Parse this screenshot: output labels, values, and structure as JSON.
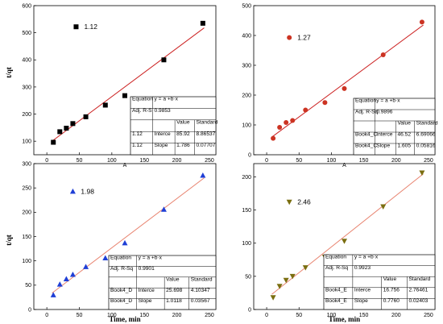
{
  "chart_data": [
    {
      "type": "scatter",
      "xlabel": "A",
      "ylabel": "t/qt",
      "xlim": [
        -20,
        260
      ],
      "ylim": [
        50,
        600
      ],
      "xticks": [
        0,
        50,
        100,
        150,
        200,
        250
      ],
      "yticks": [
        100,
        200,
        300,
        400,
        500,
        600
      ],
      "marker": "square",
      "marker_color": "#000000",
      "line_color": "#cc2222",
      "series": [
        {
          "x": [
            10,
            20,
            30,
            40,
            60,
            90,
            120,
            180,
            240
          ],
          "y": [
            96,
            135,
            148,
            165,
            190,
            233,
            268,
            400,
            535
          ]
        }
      ],
      "fit": {
        "intercept": 85.92,
        "slope": 1.786
      },
      "annotation": {
        "text": "1.12",
        "x": 45,
        "y": 522
      },
      "stats_table": {
        "equation_label": "Equation",
        "equation": "y = a +b·x",
        "r2_label": "Adj. R-S",
        "r2": "0.9853",
        "headers": [
          "Value",
          "Standard"
        ],
        "rows": [
          [
            "1.12",
            "Interce",
            "85.92",
            "8.86537"
          ],
          [
            "1.12",
            "Slope",
            "1.786",
            "0.07707"
          ]
        ]
      }
    },
    {
      "type": "scatter",
      "xlabel": "A",
      "ylabel": "",
      "xlim": [
        -20,
        260
      ],
      "ylim": [
        0,
        500
      ],
      "xticks": [
        0,
        50,
        100,
        150,
        200,
        250
      ],
      "yticks": [
        0,
        100,
        200,
        300,
        400,
        500
      ],
      "marker": "circle",
      "marker_color": "#cc3322",
      "line_color": "#cc2222",
      "series": [
        {
          "x": [
            10,
            20,
            30,
            40,
            60,
            90,
            120,
            180,
            240
          ],
          "y": [
            55,
            92,
            108,
            115,
            150,
            175,
            222,
            335,
            445
          ]
        }
      ],
      "fit": {
        "intercept": 46.52,
        "slope": 1.605
      },
      "annotation": {
        "text": "1.27",
        "x": 35,
        "y": 393
      },
      "stats_table": {
        "equation_label": "Equation",
        "equation": "y = a +b·x",
        "r2_label": "Adj. R-Sq",
        "r2": "0.9896",
        "headers": [
          "Value",
          "Standard"
        ],
        "rows": [
          [
            "Book4_C",
            "Interce",
            "46.52",
            "6.69066"
          ],
          [
            "Book4_C",
            "Slope",
            "1.605",
            "0.05816"
          ]
        ]
      }
    },
    {
      "type": "scatter",
      "xlabel": "Time, min",
      "ylabel": "t/qt",
      "xlim": [
        -20,
        260
      ],
      "ylim": [
        0,
        300
      ],
      "xticks": [
        0,
        50,
        100,
        150,
        200,
        250
      ],
      "yticks": [
        0,
        50,
        100,
        150,
        200,
        250,
        300
      ],
      "marker": "triangle",
      "marker_color": "#1f3fd6",
      "line_color": "#e8836f",
      "series": [
        {
          "x": [
            10,
            20,
            30,
            40,
            60,
            90,
            120,
            180,
            240
          ],
          "y": [
            30,
            52,
            63,
            72,
            88,
            106,
            137,
            206,
            276
          ]
        }
      ],
      "fit": {
        "intercept": 25.698,
        "slope": 1.0118
      },
      "annotation": {
        "text": "1.98",
        "x": 40,
        "y": 243
      },
      "stats_table": {
        "equation_label": "Equation",
        "equation": "y = a +b·x",
        "r2_label": "Adj. R-Sq",
        "r2": "0.9901",
        "headers": [
          "Value",
          "Standard"
        ],
        "rows": [
          [
            "Book4_D",
            "Interce",
            "25.698",
            "4.10347"
          ],
          [
            "Book4_D",
            "Slope",
            "1.0118",
            "0.03567"
          ]
        ]
      }
    },
    {
      "type": "scatter",
      "xlabel": "Time, min",
      "ylabel": "",
      "xlim": [
        -20,
        260
      ],
      "ylim": [
        0,
        220
      ],
      "xticks": [
        0,
        50,
        100,
        150,
        200,
        250
      ],
      "yticks": [
        0,
        50,
        100,
        150,
        200
      ],
      "marker": "triangle-down",
      "marker_color": "#7a6e10",
      "line_color": "#e8836f",
      "series": [
        {
          "x": [
            10,
            20,
            30,
            40,
            60,
            90,
            120,
            180,
            240
          ],
          "y": [
            18,
            35,
            44,
            50,
            63,
            79,
            103,
            155,
            206
          ]
        }
      ],
      "fit": {
        "intercept": 16.756,
        "slope": 0.776
      },
      "annotation": {
        "text": "2.46",
        "x": 35,
        "y": 162
      },
      "stats_table": {
        "equation_label": "Equation",
        "equation": "y = a +b·x",
        "r2_label": "Adj. R-Sq",
        "r2": "0.9923",
        "headers": [
          "Value",
          "Standard"
        ],
        "rows": [
          [
            "Book4_E",
            "Interce",
            "16.756",
            "2.76461"
          ],
          [
            "Book4_E",
            "Slope",
            "0.7760",
            "0.02403"
          ]
        ]
      }
    }
  ]
}
